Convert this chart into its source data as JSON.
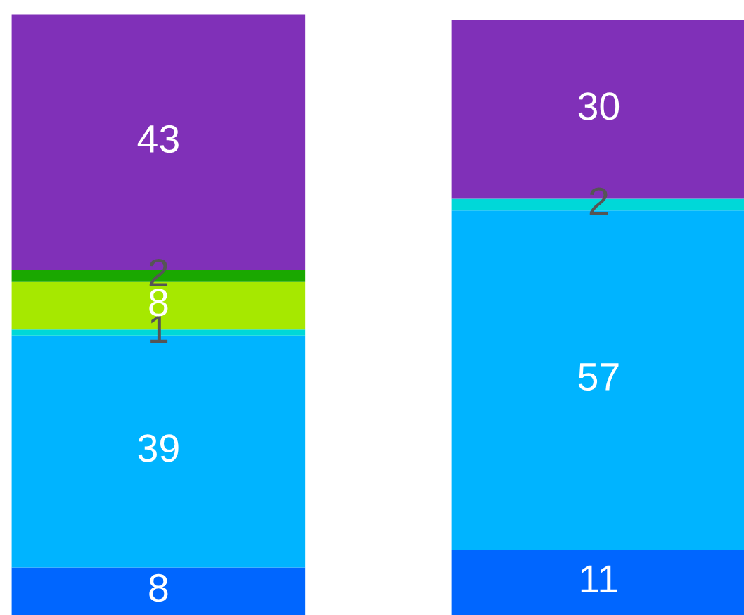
{
  "chart_data": {
    "type": "bar",
    "stacked": true,
    "data_labels": true,
    "legend": false,
    "categories": [
      null,
      null
    ],
    "series": [
      {
        "color": "#0066ff",
        "values": [
          8,
          11
        ]
      },
      {
        "color": "#00b4ff",
        "values": [
          39,
          57
        ]
      },
      {
        "color": "#00d8d8",
        "values": [
          1,
          2
        ]
      },
      {
        "color": "#a6e800",
        "values": [
          8,
          null
        ]
      },
      {
        "color": "#1aa800",
        "values": [
          2,
          null
        ]
      },
      {
        "color": "#8030b8",
        "values": [
          43,
          30
        ]
      }
    ]
  }
}
